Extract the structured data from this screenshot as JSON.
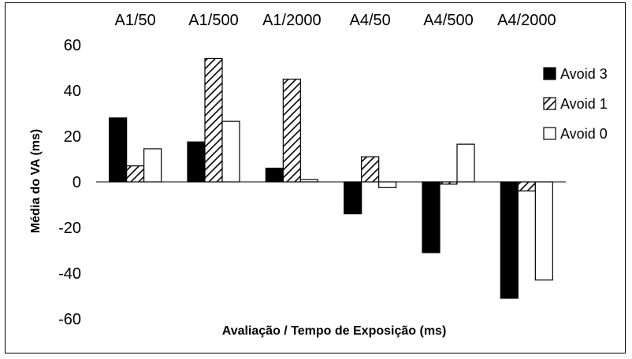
{
  "chart_data": {
    "type": "bar",
    "xlabel": "Avaliação / Tempo de Exposição (ms)",
    "ylabel": "Média do VA (ms)",
    "ylim": [
      -60,
      60
    ],
    "yticks": [
      60,
      40,
      20,
      0,
      -20,
      -40,
      -60
    ],
    "grid": false,
    "legend_position": "right",
    "categories": [
      "A1/50",
      "A1/500",
      "A1/2000",
      "A4/50",
      "A4/500",
      "A4/2000"
    ],
    "series": [
      {
        "name": "Avoid 3",
        "values": [
          28,
          17.5,
          6,
          -14,
          -31,
          -51
        ],
        "fill": "#000000",
        "pattern": "solid"
      },
      {
        "name": "Avoid 1",
        "values": [
          7,
          54,
          45,
          11,
          -1,
          -4
        ],
        "fill": "#ffffff",
        "pattern": "diagonal-hatch"
      },
      {
        "name": "Avoid 0",
        "values": [
          14.5,
          26.5,
          1,
          -2.5,
          16.5,
          -43
        ],
        "fill": "#ffffff",
        "pattern": "none"
      }
    ]
  }
}
